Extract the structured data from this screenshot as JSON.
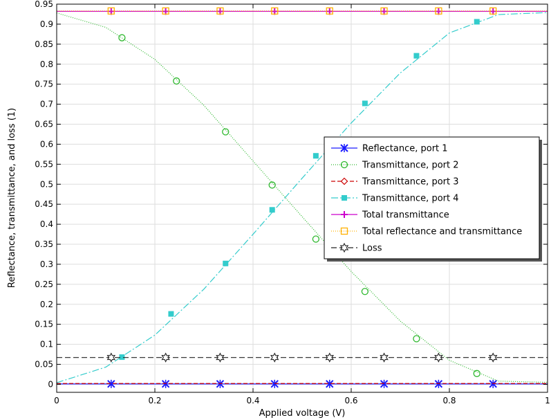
{
  "chart_data": {
    "type": "line",
    "xlabel": "Applied voltage (V)",
    "ylabel": "Reflectance, transmittance, and loss (1)",
    "xlim": [
      0,
      1
    ],
    "ylim": [
      -0.02,
      0.95
    ],
    "xticks": [
      "0",
      "0.2",
      "0.4",
      "0.6",
      "0.8",
      "1"
    ],
    "xtick_values": [
      0,
      0.2,
      0.4,
      0.6,
      0.8,
      1
    ],
    "yticks": [
      "0",
      "0.05",
      "0.1",
      "0.15",
      "0.2",
      "0.25",
      "0.3",
      "0.35",
      "0.4",
      "0.45",
      "0.5",
      "0.55",
      "0.6",
      "0.65",
      "0.7",
      "0.75",
      "0.8",
      "0.85",
      "0.9",
      "0.95"
    ],
    "ytick_values": [
      0,
      0.05,
      0.1,
      0.15,
      0.2,
      0.25,
      0.3,
      0.35,
      0.4,
      0.45,
      0.5,
      0.55,
      0.6,
      0.65,
      0.7,
      0.75,
      0.8,
      0.85,
      0.9,
      0.95
    ],
    "grid": true,
    "legend_position": "center-right",
    "series": [
      {
        "name": "Reflectance, port 1",
        "color": "#1a1aff",
        "dash": "",
        "marker": "asterisk",
        "x": [
          0,
          0.1,
          0.2,
          0.3,
          0.4,
          0.5,
          0.6,
          0.7,
          0.8,
          0.9,
          1
        ],
        "y": [
          0.001,
          0.001,
          0.001,
          0.001,
          0.001,
          0.001,
          0.001,
          0.001,
          0.001,
          0.001,
          0.001
        ],
        "marker_x": [
          0.111,
          0.222,
          0.333,
          0.444,
          0.556,
          0.667,
          0.778,
          0.889
        ],
        "marker_y": [
          0.001,
          0.001,
          0.001,
          0.001,
          0.001,
          0.001,
          0.001,
          0.001
        ]
      },
      {
        "name": "Transmittance, port 2",
        "color": "#2eb82e",
        "dash": "1,2",
        "marker": "circle",
        "x": [
          0,
          0.1,
          0.2,
          0.3,
          0.4,
          0.5,
          0.6,
          0.7,
          0.8,
          0.9,
          1
        ],
        "y": [
          0.928,
          0.892,
          0.812,
          0.697,
          0.558,
          0.419,
          0.282,
          0.158,
          0.06,
          0.008,
          0.005
        ],
        "marker_x": [
          0.133,
          0.244,
          0.344,
          0.439,
          0.528,
          0.628,
          0.733,
          0.856
        ],
        "marker_y": [
          0.866,
          0.758,
          0.631,
          0.498,
          0.363,
          0.232,
          0.114,
          0.027
        ]
      },
      {
        "name": "Transmittance, port 3",
        "color": "#cc0000",
        "dash": "6,3",
        "marker": "diamond",
        "x": [
          0,
          0.1,
          0.2,
          0.3,
          0.4,
          0.5,
          0.6,
          0.7,
          0.8,
          0.9,
          1
        ],
        "y": [
          0.002,
          0.002,
          0.002,
          0.002,
          0.002,
          0.002,
          0.002,
          0.002,
          0.002,
          0.002,
          0.002
        ],
        "marker_x": [],
        "marker_y": []
      },
      {
        "name": "Transmittance, port 4",
        "color": "#33cccc",
        "dash": "10,3,2,3",
        "marker": "square",
        "x": [
          0,
          0.1,
          0.2,
          0.3,
          0.4,
          0.5,
          0.6,
          0.7,
          0.8,
          0.9,
          1
        ],
        "y": [
          0.004,
          0.043,
          0.123,
          0.238,
          0.375,
          0.515,
          0.653,
          0.778,
          0.878,
          0.924,
          0.929
        ],
        "marker_x": [
          0.133,
          0.233,
          0.344,
          0.439,
          0.528,
          0.628,
          0.733,
          0.856
        ],
        "marker_y": [
          0.068,
          0.176,
          0.302,
          0.436,
          0.571,
          0.702,
          0.821,
          0.906
        ]
      },
      {
        "name": "Total transmittance",
        "color": "#cc00cc",
        "dash": "",
        "marker": "plus",
        "x": [
          0,
          1
        ],
        "y": [
          0.932,
          0.932
        ],
        "marker_x": [
          0.111,
          0.222,
          0.333,
          0.444,
          0.556,
          0.667,
          0.778,
          0.889
        ],
        "marker_y": [
          0.932,
          0.932,
          0.932,
          0.932,
          0.932,
          0.932,
          0.932,
          0.932
        ]
      },
      {
        "name": "Total reflectance and transmittance",
        "color": "#ffb000",
        "dash": "1,2",
        "marker": "square-open",
        "x": [
          0,
          1
        ],
        "y": [
          0.933,
          0.933
        ],
        "marker_x": [
          0.111,
          0.222,
          0.333,
          0.444,
          0.556,
          0.667,
          0.778,
          0.889
        ],
        "marker_y": [
          0.933,
          0.933,
          0.933,
          0.933,
          0.933,
          0.933,
          0.933,
          0.933
        ]
      },
      {
        "name": "Loss",
        "color": "#222222",
        "dash": "8,4",
        "marker": "star",
        "x": [
          0,
          1
        ],
        "y": [
          0.067,
          0.067
        ],
        "marker_x": [
          0.111,
          0.222,
          0.333,
          0.444,
          0.556,
          0.667,
          0.778,
          0.889
        ],
        "marker_y": [
          0.067,
          0.067,
          0.067,
          0.067,
          0.067,
          0.067,
          0.067,
          0.067
        ]
      }
    ]
  }
}
